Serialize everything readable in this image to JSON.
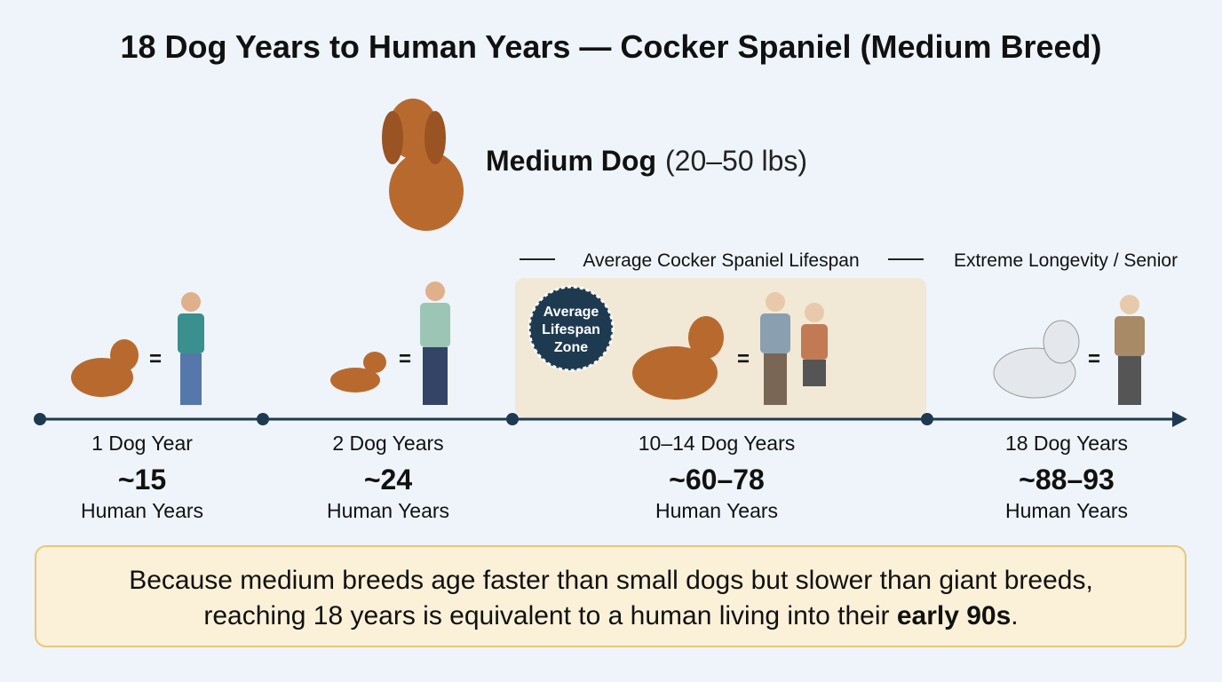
{
  "header": {
    "title": "18 Dog Years to Human Years — Cocker Spaniel (Medium Breed)"
  },
  "size": {
    "label": "Medium Dog",
    "range": "(20–50 lbs)"
  },
  "brackets": [
    "Average Cocker Spaniel Lifespan",
    "Extreme Longevity / Senior"
  ],
  "badge": {
    "lines": [
      "Average",
      "Lifespan",
      "Zone"
    ]
  },
  "equals": "=",
  "stages": [
    {
      "dog_years": "1 Dog Year",
      "human_value": "~15",
      "human_label": "Human Years"
    },
    {
      "dog_years": "2 Dog Years",
      "human_value": "~24",
      "human_label": "Human Years"
    },
    {
      "dog_years": "10–14 Dog Years",
      "human_value": "~60–78",
      "human_label": "Human Years"
    },
    {
      "dog_years": "18 Dog Years",
      "human_value": "~88–93",
      "human_label": "Human Years"
    }
  ],
  "note": {
    "line1": "Because medium breeds age faster than small dogs but slower than giant breeds,",
    "line2": "reaching 18 years is equivalent to a human living into their ",
    "emphasis": "early 90s",
    "end": "."
  }
}
